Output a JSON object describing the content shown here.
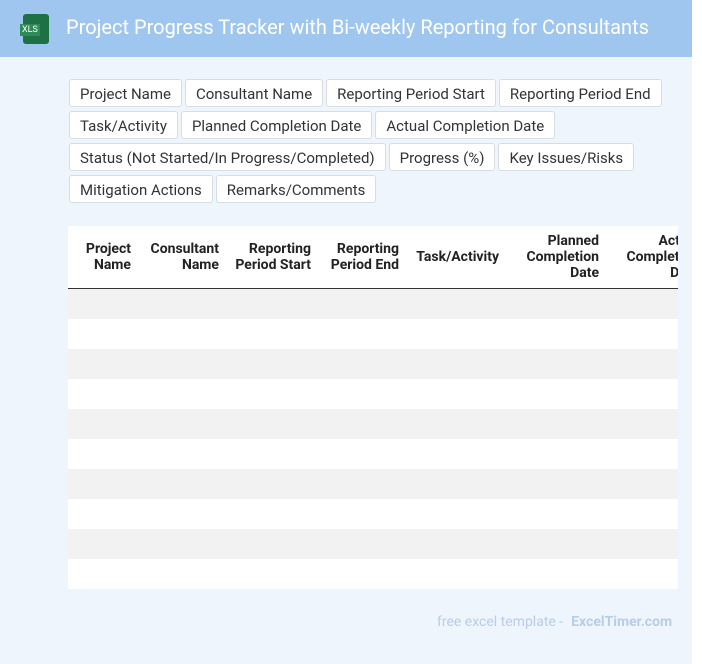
{
  "header": {
    "icon_label": "XLS",
    "title": "Project Progress Tracker with Bi-weekly Reporting for Consultants"
  },
  "tags": [
    "Project Name",
    "Consultant Name",
    "Reporting Period Start",
    "Reporting Period End",
    "Task/Activity",
    "Planned Completion Date",
    "Actual Completion Date",
    "Status (Not Started/In Progress/Completed)",
    "Progress (%)",
    "Key Issues/Risks",
    "Mitigation Actions",
    "Remarks/Comments"
  ],
  "table": {
    "columns": [
      "Project Name",
      "Consultant Name",
      "Reporting Period Start",
      "Reporting Period End",
      "Task/Activity",
      "Planned Completion Date",
      "Actual Completion Date"
    ]
  },
  "footer": {
    "text": "free excel template -",
    "link": "ExcelTimer.com"
  }
}
